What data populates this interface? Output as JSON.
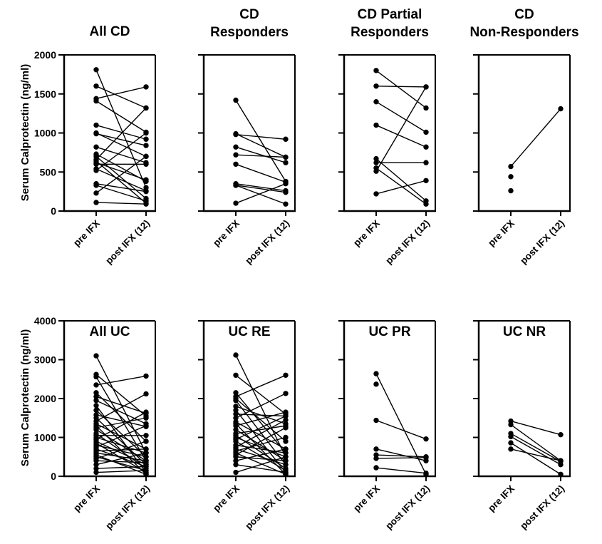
{
  "rows": [
    {
      "ylabel": "Serum Calprotectin (ng/ml)",
      "ylim": [
        0,
        2000
      ],
      "yticks": [
        0,
        500,
        1000,
        1500,
        2000
      ]
    },
    {
      "ylabel": "Serum Calprotectin (ng/ml)",
      "ylim": [
        0,
        4000
      ],
      "yticks": [
        0,
        1000,
        2000,
        3000,
        4000
      ]
    }
  ],
  "chart_data": [
    {
      "type": "line",
      "title": "All CD",
      "categories": [
        "pre IFX",
        "post IFX (12)"
      ],
      "ylim": [
        0,
        2000
      ],
      "pairs": [
        [
          1810,
          300
        ],
        [
          1600,
          1320
        ],
        [
          1440,
          1590
        ],
        [
          1410,
          1010
        ],
        [
          1100,
          920
        ],
        [
          1000,
          700
        ],
        [
          990,
          840
        ],
        [
          820,
          620
        ],
        [
          730,
          380
        ],
        [
          700,
          160
        ],
        [
          660,
          1320
        ],
        [
          640,
          100
        ],
        [
          620,
          400
        ],
        [
          600,
          600
        ],
        [
          540,
          260
        ],
        [
          520,
          1000
        ],
        [
          350,
          250
        ],
        [
          330,
          130
        ],
        [
          230,
          700
        ],
        [
          110,
          90
        ]
      ],
      "unpaired": []
    },
    {
      "type": "line",
      "title": "CD\nResponders",
      "categories": [
        "pre IFX",
        "post IFX (12)"
      ],
      "ylim": [
        0,
        2000
      ],
      "pairs": [
        [
          1420,
          380
        ],
        [
          990,
          690
        ],
        [
          980,
          920
        ],
        [
          820,
          620
        ],
        [
          720,
          690
        ],
        [
          600,
          370
        ],
        [
          350,
          260
        ],
        [
          330,
          240
        ],
        [
          100,
          350
        ],
        [
          330,
          90
        ]
      ],
      "unpaired": []
    },
    {
      "type": "line",
      "title": "CD Partial\nResponders",
      "categories": [
        "pre IFX",
        "post IFX (12)"
      ],
      "ylim": [
        0,
        2000
      ],
      "pairs": [
        [
          1800,
          1320
        ],
        [
          1600,
          1590
        ],
        [
          1400,
          1010
        ],
        [
          1100,
          820
        ],
        [
          670,
          130
        ],
        [
          620,
          620
        ],
        [
          550,
          90
        ],
        [
          510,
          1590
        ],
        [
          220,
          390
        ]
      ],
      "unpaired": []
    },
    {
      "type": "line",
      "title": "CD\nNon-Responders",
      "categories": [
        "pre IFX",
        "post IFX (12)"
      ],
      "ylim": [
        0,
        2000
      ],
      "pairs": [
        [
          570,
          1310
        ]
      ],
      "unpaired": [
        {
          "x": 0,
          "y": 440
        },
        {
          "x": 0,
          "y": 260
        }
      ]
    },
    {
      "type": "line",
      "title": "All UC",
      "categories": [
        "pre IFX",
        "post IFX (12)"
      ],
      "ylim": [
        0,
        4000
      ],
      "pairs": [
        [
          3100,
          600
        ],
        [
          2620,
          1550
        ],
        [
          2560,
          400
        ],
        [
          2350,
          2580
        ],
        [
          2150,
          900
        ],
        [
          2050,
          1620
        ],
        [
          1950,
          1350
        ],
        [
          1820,
          100
        ],
        [
          1700,
          500
        ],
        [
          1580,
          1280
        ],
        [
          1500,
          300
        ],
        [
          1420,
          2120
        ],
        [
          1350,
          700
        ],
        [
          1300,
          50
        ],
        [
          1250,
          1500
        ],
        [
          1200,
          400
        ],
        [
          1100,
          200
        ],
        [
          1050,
          1050
        ],
        [
          1000,
          600
        ],
        [
          950,
          1650
        ],
        [
          900,
          300
        ],
        [
          850,
          100
        ],
        [
          800,
          500
        ],
        [
          750,
          1300
        ],
        [
          700,
          250
        ],
        [
          650,
          700
        ],
        [
          600,
          400
        ],
        [
          550,
          50
        ],
        [
          500,
          150
        ],
        [
          450,
          900
        ],
        [
          400,
          350
        ],
        [
          300,
          600
        ],
        [
          200,
          250
        ],
        [
          100,
          150
        ]
      ],
      "unpaired": []
    },
    {
      "type": "line",
      "title": "UC RE",
      "categories": [
        "pre IFX",
        "post IFX (12)"
      ],
      "ylim": [
        0,
        4000
      ],
      "pairs": [
        [
          3120,
          500
        ],
        [
          2600,
          1600
        ],
        [
          2150,
          600
        ],
        [
          2050,
          2600
        ],
        [
          2000,
          900
        ],
        [
          1950,
          300
        ],
        [
          1800,
          1350
        ],
        [
          1700,
          100
        ],
        [
          1600,
          1550
        ],
        [
          1500,
          2130
        ],
        [
          1400,
          700
        ],
        [
          1350,
          50
        ],
        [
          1300,
          1650
        ],
        [
          1200,
          400
        ],
        [
          1100,
          1300
        ],
        [
          1050,
          200
        ],
        [
          1000,
          500
        ],
        [
          950,
          1550
        ],
        [
          900,
          150
        ],
        [
          800,
          600
        ],
        [
          750,
          1450
        ],
        [
          700,
          300
        ],
        [
          650,
          1000
        ],
        [
          600,
          50
        ],
        [
          550,
          1250
        ],
        [
          500,
          400
        ],
        [
          400,
          700
        ],
        [
          300,
          100
        ],
        [
          100,
          500
        ]
      ],
      "unpaired": []
    },
    {
      "type": "line",
      "title": "UC PR",
      "categories": [
        "pre IFX",
        "post IFX (12)"
      ],
      "ylim": [
        0,
        4000
      ],
      "pairs": [
        [
          2640,
          50
        ],
        [
          1440,
          960
        ],
        [
          700,
          400
        ],
        [
          550,
          500
        ],
        [
          460,
          480
        ],
        [
          220,
          80
        ]
      ],
      "unpaired": [
        {
          "x": 0,
          "y": 2370
        }
      ]
    },
    {
      "type": "line",
      "title": "UC NR",
      "categories": [
        "pre IFX",
        "post IFX (12)"
      ],
      "ylim": [
        0,
        4000
      ],
      "pairs": [
        [
          1420,
          1070
        ],
        [
          1330,
          400
        ],
        [
          1100,
          380
        ],
        [
          1020,
          300
        ],
        [
          860,
          50
        ],
        [
          700,
          400
        ]
      ],
      "unpaired": []
    }
  ]
}
